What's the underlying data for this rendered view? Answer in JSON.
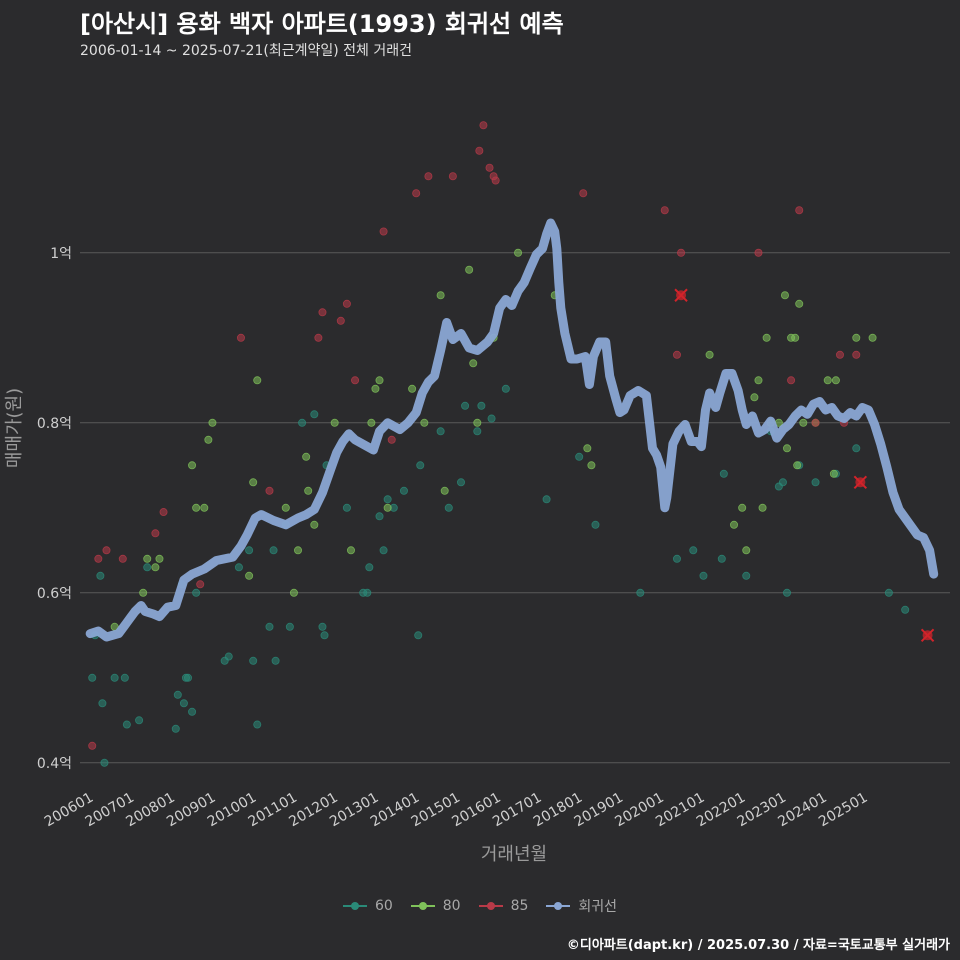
{
  "header": {
    "title": "[아산시] 용화 백자 아파트(1993) 회귀선 예측",
    "subtitle": "2006-01-14 ~ 2025-07-21(최근계약일) 전체 거래건"
  },
  "source": "©디아파트(dapt.kr) / 2025.07.30 / 자료=국토교통부 실거래가",
  "colors": {
    "background": "#2b2b2d",
    "s60": "#2a8a78",
    "s80": "#7fc25a",
    "s85": "#b83a48",
    "regression": "#8aa6d4",
    "grid": "#5a5a5a",
    "marker": "#d2232a"
  },
  "chart_data": {
    "type": "scatter",
    "title": "[아산시] 용화 백자 아파트(1993) 회귀선 예측",
    "xlabel": "거래년월",
    "ylabel": "매매가(원)",
    "x_ticks": [
      "200601",
      "200701",
      "200801",
      "200901",
      "201001",
      "201101",
      "201201",
      "201301",
      "201401",
      "201501",
      "201601",
      "201701",
      "201801",
      "201901",
      "202001",
      "202101",
      "202201",
      "202301",
      "202401",
      "202501"
    ],
    "y_ticks": [
      {
        "value": 0.4,
        "label": "0.4억"
      },
      {
        "value": 0.6,
        "label": "0.6억"
      },
      {
        "value": 0.8,
        "label": "0.8억"
      },
      {
        "value": 1.0,
        "label": "1억"
      }
    ],
    "xlim": [
      2005.75,
      2027.1
    ],
    "ylim": [
      0.368,
      1.215
    ],
    "grid": true,
    "legend_position": "bottom",
    "legend": [
      "60",
      "80",
      "85",
      "회귀선"
    ],
    "series": [
      {
        "name": "60",
        "color": "#2a8a78",
        "points": [
          [
            2006.05,
            0.5
          ],
          [
            2006.12,
            0.55
          ],
          [
            2006.25,
            0.62
          ],
          [
            2006.3,
            0.47
          ],
          [
            2006.35,
            0.4
          ],
          [
            2006.6,
            0.5
          ],
          [
            2006.85,
            0.5
          ],
          [
            2006.9,
            0.445
          ],
          [
            2007.2,
            0.45
          ],
          [
            2007.4,
            0.63
          ],
          [
            2008.1,
            0.44
          ],
          [
            2008.15,
            0.48
          ],
          [
            2008.25,
            0.61
          ],
          [
            2008.3,
            0.47
          ],
          [
            2008.35,
            0.5
          ],
          [
            2008.4,
            0.5
          ],
          [
            2008.5,
            0.46
          ],
          [
            2008.6,
            0.6
          ],
          [
            2009.3,
            0.52
          ],
          [
            2009.4,
            0.525
          ],
          [
            2009.65,
            0.63
          ],
          [
            2009.9,
            0.65
          ],
          [
            2010.0,
            0.52
          ],
          [
            2010.1,
            0.445
          ],
          [
            2010.4,
            0.56
          ],
          [
            2010.5,
            0.65
          ],
          [
            2010.55,
            0.52
          ],
          [
            2010.8,
            0.68
          ],
          [
            2010.9,
            0.56
          ],
          [
            2011.2,
            0.8
          ],
          [
            2011.5,
            0.81
          ],
          [
            2011.7,
            0.56
          ],
          [
            2011.75,
            0.55
          ],
          [
            2011.8,
            0.75
          ],
          [
            2012.3,
            0.7
          ],
          [
            2012.7,
            0.6
          ],
          [
            2012.8,
            0.6
          ],
          [
            2012.85,
            0.63
          ],
          [
            2013.1,
            0.69
          ],
          [
            2013.2,
            0.65
          ],
          [
            2013.3,
            0.71
          ],
          [
            2013.45,
            0.7
          ],
          [
            2013.7,
            0.72
          ],
          [
            2014.05,
            0.55
          ],
          [
            2014.1,
            0.75
          ],
          [
            2014.6,
            0.79
          ],
          [
            2014.8,
            0.7
          ],
          [
            2015.1,
            0.73
          ],
          [
            2015.2,
            0.82
          ],
          [
            2015.5,
            0.79
          ],
          [
            2015.6,
            0.82
          ],
          [
            2015.85,
            0.805
          ],
          [
            2016.2,
            0.84
          ],
          [
            2017.2,
            0.71
          ],
          [
            2018.0,
            0.76
          ],
          [
            2018.4,
            0.68
          ],
          [
            2019.5,
            0.6
          ],
          [
            2020.4,
            0.64
          ],
          [
            2020.8,
            0.65
          ],
          [
            2021.05,
            0.62
          ],
          [
            2021.5,
            0.64
          ],
          [
            2021.55,
            0.74
          ],
          [
            2022.1,
            0.62
          ],
          [
            2022.7,
            0.79
          ],
          [
            2022.9,
            0.725
          ],
          [
            2023.0,
            0.73
          ],
          [
            2023.1,
            0.6
          ],
          [
            2023.4,
            0.75
          ],
          [
            2023.8,
            0.73
          ],
          [
            2024.3,
            0.74
          ],
          [
            2024.8,
            0.77
          ],
          [
            2025.6,
            0.6
          ],
          [
            2026.0,
            0.58
          ]
        ]
      },
      {
        "name": "80",
        "color": "#7fc25a",
        "points": [
          [
            2006.6,
            0.56
          ],
          [
            2007.3,
            0.6
          ],
          [
            2007.4,
            0.64
          ],
          [
            2007.6,
            0.63
          ],
          [
            2007.7,
            0.64
          ],
          [
            2008.5,
            0.75
          ],
          [
            2008.6,
            0.7
          ],
          [
            2008.8,
            0.7
          ],
          [
            2008.9,
            0.78
          ],
          [
            2009.0,
            0.8
          ],
          [
            2009.9,
            0.62
          ],
          [
            2010.0,
            0.73
          ],
          [
            2010.1,
            0.85
          ],
          [
            2010.8,
            0.7
          ],
          [
            2011.0,
            0.6
          ],
          [
            2011.1,
            0.65
          ],
          [
            2011.3,
            0.76
          ],
          [
            2011.35,
            0.72
          ],
          [
            2011.5,
            0.68
          ],
          [
            2012.0,
            0.8
          ],
          [
            2012.4,
            0.65
          ],
          [
            2012.9,
            0.8
          ],
          [
            2013.0,
            0.84
          ],
          [
            2013.1,
            0.85
          ],
          [
            2013.3,
            0.7
          ],
          [
            2013.9,
            0.84
          ],
          [
            2014.2,
            0.8
          ],
          [
            2014.6,
            0.95
          ],
          [
            2014.7,
            0.72
          ],
          [
            2015.3,
            0.98
          ],
          [
            2015.4,
            0.87
          ],
          [
            2015.5,
            0.8
          ],
          [
            2015.9,
            0.9
          ],
          [
            2016.5,
            1.0
          ],
          [
            2017.4,
            0.95
          ],
          [
            2018.2,
            0.77
          ],
          [
            2018.3,
            0.75
          ],
          [
            2021.2,
            0.88
          ],
          [
            2021.8,
            0.68
          ],
          [
            2022.0,
            0.7
          ],
          [
            2022.1,
            0.65
          ],
          [
            2022.3,
            0.83
          ],
          [
            2022.4,
            0.85
          ],
          [
            2022.5,
            0.7
          ],
          [
            2022.6,
            0.9
          ],
          [
            2022.7,
            0.8
          ],
          [
            2022.9,
            0.8
          ],
          [
            2023.05,
            0.95
          ],
          [
            2023.1,
            0.77
          ],
          [
            2023.2,
            0.9
          ],
          [
            2023.3,
            0.9
          ],
          [
            2023.35,
            0.75
          ],
          [
            2023.4,
            0.94
          ],
          [
            2023.5,
            0.8
          ],
          [
            2023.8,
            0.8
          ],
          [
            2024.1,
            0.85
          ],
          [
            2024.25,
            0.74
          ],
          [
            2024.3,
            0.85
          ],
          [
            2024.8,
            0.9
          ],
          [
            2025.2,
            0.9
          ]
        ]
      },
      {
        "name": "85",
        "color": "#b83a48",
        "points": [
          [
            2006.05,
            0.42
          ],
          [
            2006.2,
            0.64
          ],
          [
            2006.4,
            0.65
          ],
          [
            2006.8,
            0.64
          ],
          [
            2007.6,
            0.67
          ],
          [
            2007.8,
            0.695
          ],
          [
            2008.7,
            0.61
          ],
          [
            2009.7,
            0.9
          ],
          [
            2010.4,
            0.72
          ],
          [
            2011.6,
            0.9
          ],
          [
            2011.7,
            0.93
          ],
          [
            2012.15,
            0.92
          ],
          [
            2012.3,
            0.94
          ],
          [
            2012.5,
            0.85
          ],
          [
            2013.2,
            1.025
          ],
          [
            2013.4,
            0.78
          ],
          [
            2014.0,
            1.07
          ],
          [
            2014.3,
            1.09
          ],
          [
            2014.9,
            1.09
          ],
          [
            2015.55,
            1.12
          ],
          [
            2015.65,
            1.15
          ],
          [
            2015.8,
            1.1
          ],
          [
            2015.9,
            1.09
          ],
          [
            2015.95,
            1.085
          ],
          [
            2018.1,
            1.07
          ],
          [
            2020.1,
            1.05
          ],
          [
            2020.4,
            0.88
          ],
          [
            2020.5,
            1.0
          ],
          [
            2022.4,
            1.0
          ],
          [
            2023.2,
            0.85
          ],
          [
            2023.4,
            1.05
          ],
          [
            2023.8,
            0.8
          ],
          [
            2024.4,
            0.88
          ],
          [
            2024.5,
            0.8
          ],
          [
            2024.8,
            0.88
          ]
        ]
      }
    ],
    "regression_line": {
      "name": "회귀선",
      "points": [
        [
          2006.0,
          0.552
        ],
        [
          2006.2,
          0.555
        ],
        [
          2006.4,
          0.548
        ],
        [
          2006.7,
          0.552
        ],
        [
          2006.9,
          0.565
        ],
        [
          2007.1,
          0.578
        ],
        [
          2007.25,
          0.585
        ],
        [
          2007.35,
          0.578
        ],
        [
          2007.55,
          0.575
        ],
        [
          2007.7,
          0.572
        ],
        [
          2007.9,
          0.583
        ],
        [
          2008.1,
          0.585
        ],
        [
          2008.3,
          0.615
        ],
        [
          2008.5,
          0.622
        ],
        [
          2008.8,
          0.628
        ],
        [
          2009.1,
          0.638
        ],
        [
          2009.5,
          0.642
        ],
        [
          2009.7,
          0.655
        ],
        [
          2009.85,
          0.668
        ],
        [
          2010.05,
          0.688
        ],
        [
          2010.2,
          0.692
        ],
        [
          2010.5,
          0.685
        ],
        [
          2010.8,
          0.68
        ],
        [
          2011.1,
          0.688
        ],
        [
          2011.3,
          0.692
        ],
        [
          2011.5,
          0.698
        ],
        [
          2011.7,
          0.718
        ],
        [
          2011.9,
          0.745
        ],
        [
          2012.05,
          0.765
        ],
        [
          2012.2,
          0.778
        ],
        [
          2012.35,
          0.787
        ],
        [
          2012.5,
          0.78
        ],
        [
          2012.8,
          0.772
        ],
        [
          2012.95,
          0.768
        ],
        [
          2013.1,
          0.79
        ],
        [
          2013.3,
          0.8
        ],
        [
          2013.6,
          0.792
        ],
        [
          2013.8,
          0.8
        ],
        [
          2014.0,
          0.812
        ],
        [
          2014.15,
          0.835
        ],
        [
          2014.3,
          0.848
        ],
        [
          2014.45,
          0.855
        ],
        [
          2014.6,
          0.885
        ],
        [
          2014.75,
          0.918
        ],
        [
          2014.9,
          0.898
        ],
        [
          2015.1,
          0.905
        ],
        [
          2015.3,
          0.888
        ],
        [
          2015.5,
          0.885
        ],
        [
          2015.75,
          0.895
        ],
        [
          2015.9,
          0.905
        ],
        [
          2016.05,
          0.935
        ],
        [
          2016.2,
          0.945
        ],
        [
          2016.35,
          0.938
        ],
        [
          2016.5,
          0.955
        ],
        [
          2016.65,
          0.965
        ],
        [
          2016.8,
          0.982
        ],
        [
          2016.95,
          0.998
        ],
        [
          2017.1,
          1.005
        ],
        [
          2017.2,
          1.022
        ],
        [
          2017.3,
          1.035
        ],
        [
          2017.4,
          1.025
        ],
        [
          2017.45,
          1.005
        ],
        [
          2017.5,
          0.965
        ],
        [
          2017.55,
          0.935
        ],
        [
          2017.65,
          0.905
        ],
        [
          2017.8,
          0.875
        ],
        [
          2017.95,
          0.875
        ],
        [
          2018.15,
          0.878
        ],
        [
          2018.25,
          0.845
        ],
        [
          2018.35,
          0.878
        ],
        [
          2018.5,
          0.895
        ],
        [
          2018.65,
          0.895
        ],
        [
          2018.75,
          0.855
        ],
        [
          2018.9,
          0.828
        ],
        [
          2019.0,
          0.812
        ],
        [
          2019.1,
          0.815
        ],
        [
          2019.25,
          0.832
        ],
        [
          2019.45,
          0.838
        ],
        [
          2019.65,
          0.832
        ],
        [
          2019.8,
          0.77
        ],
        [
          2019.9,
          0.762
        ],
        [
          2020.0,
          0.748
        ],
        [
          2020.1,
          0.7
        ],
        [
          2020.15,
          0.712
        ],
        [
          2020.3,
          0.775
        ],
        [
          2020.45,
          0.79
        ],
        [
          2020.6,
          0.798
        ],
        [
          2020.75,
          0.778
        ],
        [
          2020.9,
          0.778
        ],
        [
          2021.0,
          0.772
        ],
        [
          2021.1,
          0.815
        ],
        [
          2021.2,
          0.835
        ],
        [
          2021.35,
          0.818
        ],
        [
          2021.45,
          0.835
        ],
        [
          2021.6,
          0.858
        ],
        [
          2021.75,
          0.858
        ],
        [
          2021.9,
          0.838
        ],
        [
          2022.0,
          0.815
        ],
        [
          2022.1,
          0.798
        ],
        [
          2022.25,
          0.808
        ],
        [
          2022.4,
          0.788
        ],
        [
          2022.55,
          0.792
        ],
        [
          2022.7,
          0.802
        ],
        [
          2022.85,
          0.782
        ],
        [
          2023.0,
          0.792
        ],
        [
          2023.15,
          0.798
        ],
        [
          2023.3,
          0.808
        ],
        [
          2023.45,
          0.815
        ],
        [
          2023.6,
          0.81
        ],
        [
          2023.75,
          0.822
        ],
        [
          2023.9,
          0.825
        ],
        [
          2024.05,
          0.815
        ],
        [
          2024.2,
          0.818
        ],
        [
          2024.35,
          0.808
        ],
        [
          2024.5,
          0.805
        ],
        [
          2024.65,
          0.812
        ],
        [
          2024.8,
          0.808
        ],
        [
          2024.95,
          0.818
        ],
        [
          2025.1,
          0.815
        ],
        [
          2025.25,
          0.798
        ],
        [
          2025.4,
          0.775
        ],
        [
          2025.55,
          0.748
        ],
        [
          2025.7,
          0.718
        ],
        [
          2025.85,
          0.698
        ],
        [
          2026.0,
          0.688
        ],
        [
          2026.15,
          0.678
        ],
        [
          2026.3,
          0.668
        ],
        [
          2026.45,
          0.665
        ],
        [
          2026.6,
          0.65
        ],
        [
          2026.7,
          0.622
        ]
      ]
    },
    "prediction_markers": [
      [
        2020.5,
        0.95
      ],
      [
        2024.9,
        0.73
      ],
      [
        2026.55,
        0.55
      ]
    ]
  }
}
